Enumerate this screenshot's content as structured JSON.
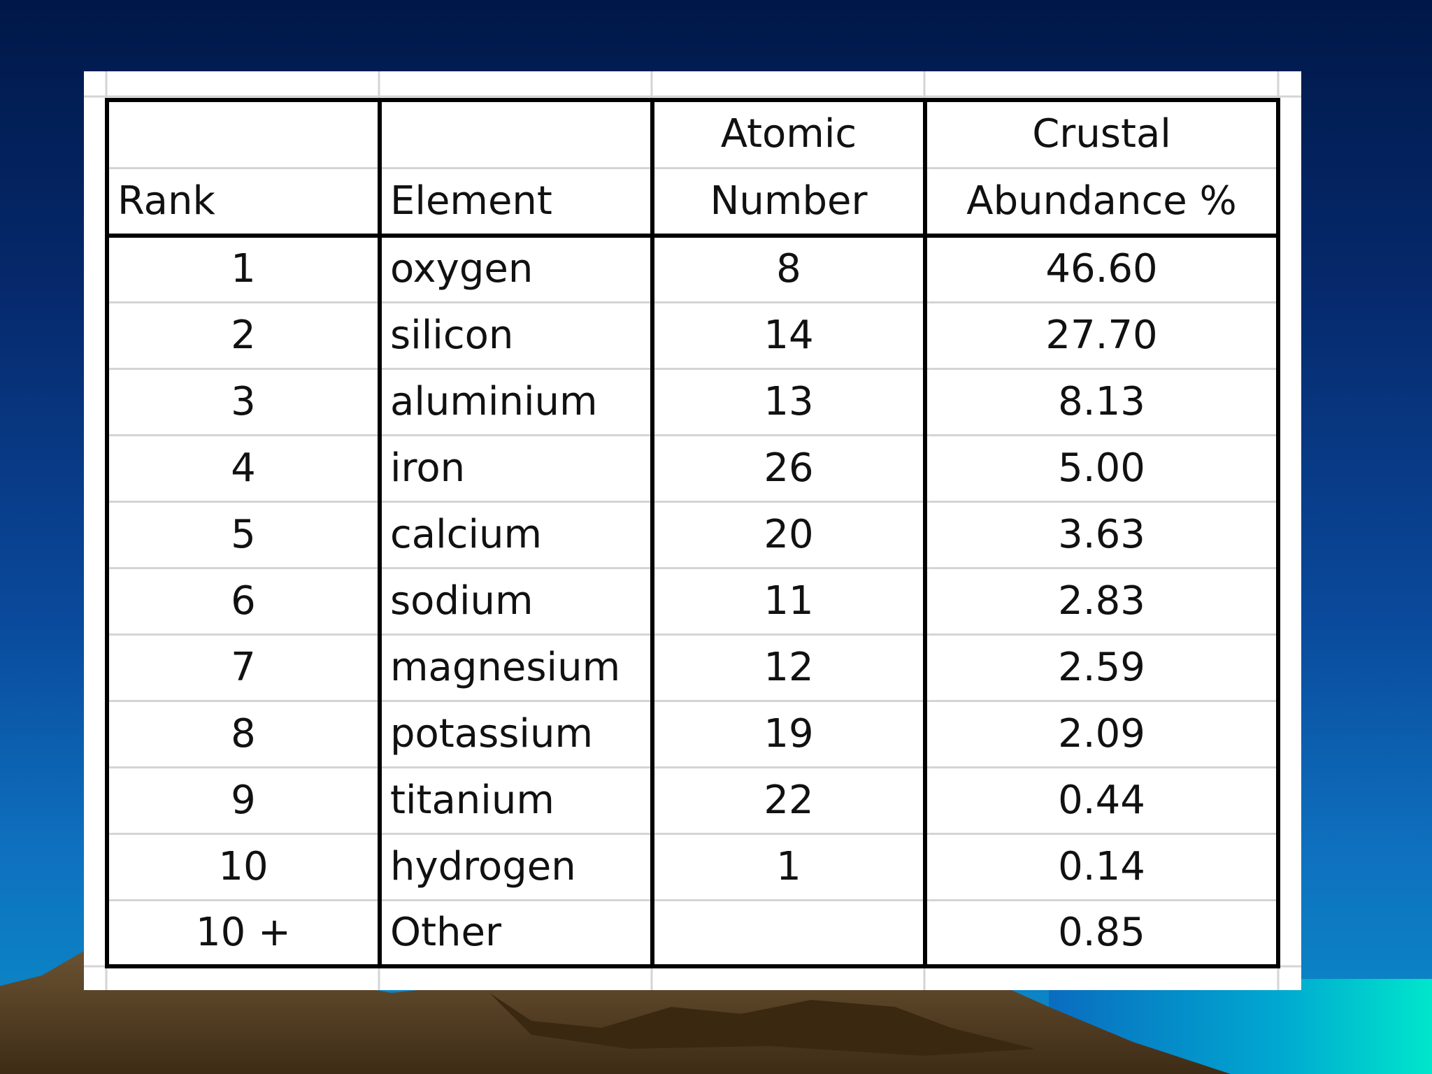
{
  "table": {
    "headers": {
      "top": [
        "",
        "",
        "Atomic",
        "Crustal"
      ],
      "bottom": [
        "Rank",
        "Element",
        "Number",
        "Abundance %"
      ]
    },
    "rows": [
      {
        "rank": "1",
        "element": "oxygen",
        "atomic_number": "8",
        "abundance": "46.60"
      },
      {
        "rank": "2",
        "element": "silicon",
        "atomic_number": "14",
        "abundance": "27.70"
      },
      {
        "rank": "3",
        "element": "aluminium",
        "atomic_number": "13",
        "abundance": "8.13"
      },
      {
        "rank": "4",
        "element": "iron",
        "atomic_number": "26",
        "abundance": "5.00"
      },
      {
        "rank": "5",
        "element": "calcium",
        "atomic_number": "20",
        "abundance": "3.63"
      },
      {
        "rank": "6",
        "element": "sodium",
        "atomic_number": "11",
        "abundance": "2.83"
      },
      {
        "rank": "7",
        "element": "magnesium",
        "atomic_number": "12",
        "abundance": "2.59"
      },
      {
        "rank": "8",
        "element": "potassium",
        "atomic_number": "19",
        "abundance": "2.09"
      },
      {
        "rank": "9",
        "element": "titanium",
        "atomic_number": "22",
        "abundance": "0.44"
      },
      {
        "rank": "10",
        "element": "hydrogen",
        "atomic_number": "1",
        "abundance": "0.14"
      },
      {
        "rank": "10 +",
        "element": "Other",
        "atomic_number": "",
        "abundance": "0.85"
      }
    ]
  },
  "colors": {
    "sky_top": "#001848",
    "sky_bottom": "#0a8ec8",
    "ground": "#5a4428",
    "water": "#00d8c8"
  }
}
